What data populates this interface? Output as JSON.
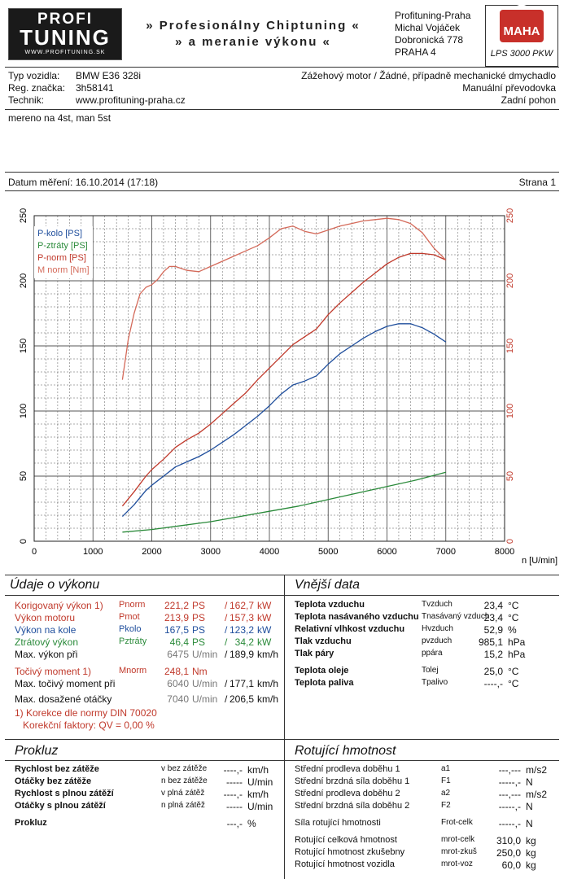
{
  "header": {
    "logo": {
      "line1": "PROFI",
      "line2": "TUNING",
      "line3": "WWW.PROFITUNING.SK"
    },
    "slogan_line1": "» Profesionálny Chiptuning «",
    "slogan_line2": "» a meranie výkonu «",
    "address": [
      "Profituning-Praha",
      "Michal Vojáček",
      "Dobronická 778",
      "PRAHA 4"
    ],
    "maha_logo": "MAHA",
    "maha_model": "LPS 3000 PKW"
  },
  "vehicle": {
    "type_label": "Typ vozidla:",
    "type_value": "BMW E36 328i",
    "reg_label": "Reg. značka:",
    "reg_value": "3h58141",
    "tech_label": "Technik:",
    "tech_value": "www.profituning-praha.cz",
    "right1": "Zážehový motor / Žádné, případně mechanické dmychadlo",
    "right2": "Manuální převodovka",
    "right3": "Zadní pohon"
  },
  "note": "mereno na 4st, man 5st",
  "meas_date": "Datum měření: 16.10.2014 (17:18)",
  "page": "Strana 1",
  "chart_data": {
    "type": "line",
    "xlabel": "n [U/min]",
    "xlim": [
      0,
      8000
    ],
    "ylim": [
      0,
      250
    ],
    "x_ticks": [
      "0",
      "1000",
      "2000",
      "3000",
      "4000",
      "5000",
      "6000",
      "7000",
      "8000"
    ],
    "y_ticks_left": [
      "0",
      "50",
      "100",
      "150",
      "200",
      "250"
    ],
    "y_ticks_right": [
      "0",
      "50",
      "100",
      "150",
      "200",
      "250"
    ],
    "grid": true,
    "legend_position": "top-left",
    "series": [
      {
        "name": "P-kolo [PS]",
        "color": "#1f4e9c",
        "x": [
          1500,
          1700,
          1900,
          2000,
          2200,
          2400,
          2600,
          2800,
          3000,
          3200,
          3400,
          3600,
          3800,
          4000,
          4200,
          4400,
          4600,
          4800,
          5000,
          5200,
          5400,
          5600,
          5800,
          6000,
          6200,
          6400,
          6600,
          6800,
          7000
        ],
        "y": [
          19,
          28,
          39,
          43,
          50,
          57,
          61,
          65,
          70,
          76,
          82,
          89,
          96,
          104,
          113,
          120,
          123,
          127,
          136,
          144,
          150,
          156,
          161,
          165,
          167,
          167,
          164,
          159,
          153
        ]
      },
      {
        "name": "P-ztráty [PS]",
        "color": "#2a8a3a",
        "x": [
          1500,
          2000,
          2500,
          3000,
          3500,
          4000,
          4500,
          5000,
          5500,
          6000,
          6500,
          7000
        ],
        "y": [
          7,
          9,
          12,
          15,
          19,
          23,
          27,
          32,
          37,
          42,
          47,
          53
        ]
      },
      {
        "name": "P-norm [PS]",
        "color": "#c0392b",
        "x": [
          1500,
          1700,
          1900,
          2000,
          2200,
          2400,
          2600,
          2800,
          3000,
          3200,
          3400,
          3600,
          3800,
          4000,
          4200,
          4400,
          4600,
          4800,
          5000,
          5200,
          5400,
          5600,
          5800,
          6000,
          6200,
          6400,
          6600,
          6800,
          7000
        ],
        "y": [
          27,
          38,
          50,
          55,
          63,
          72,
          78,
          83,
          90,
          98,
          106,
          114,
          124,
          133,
          142,
          151,
          157,
          163,
          174,
          183,
          191,
          199,
          206,
          213,
          218,
          221,
          221,
          220,
          216
        ]
      },
      {
        "name": "M norm [Nm]",
        "color": "#d46a5a",
        "x": [
          1500,
          1600,
          1700,
          1800,
          1900,
          2000,
          2100,
          2200,
          2300,
          2400,
          2600,
          2800,
          3000,
          3200,
          3400,
          3600,
          3800,
          4000,
          4200,
          4400,
          4600,
          4800,
          5000,
          5200,
          5400,
          5600,
          5800,
          6000,
          6200,
          6400,
          6600,
          6800,
          7000
        ],
        "y": [
          124,
          155,
          175,
          190,
          195,
          197,
          201,
          207,
          211,
          211,
          208,
          207,
          211,
          215,
          219,
          223,
          227,
          233,
          240,
          242,
          238,
          236,
          239,
          242,
          244,
          246,
          247,
          248,
          247,
          244,
          237,
          225,
          216
        ]
      }
    ]
  },
  "udaje": {
    "title": "Údaje o výkonu",
    "rows": [
      {
        "label": "Korigovaný výkon 1)",
        "sym": "Pnorm",
        "v1": "221,2",
        "u1": "PS",
        "sep": "/",
        "v2": "162,7",
        "u2": "kW"
      },
      {
        "label": "Výkon motoru",
        "sym": "Pmot",
        "v1": "213,9",
        "u1": "PS",
        "sep": "/",
        "v2": "157,3",
        "u2": "kW"
      },
      {
        "label": "Výkon na kole",
        "sym": "Pkolo",
        "v1": "167,5",
        "u1": "PS",
        "sep": "/",
        "v2": "123,2",
        "u2": "kW"
      },
      {
        "label": "Ztrátový výkon",
        "sym": "Pztráty",
        "v1": "46,4",
        "u1": "PS",
        "sep": "/",
        "v2": "34,2",
        "u2": "kW"
      },
      {
        "label": "Max. výkon při",
        "sym": "",
        "v1": "6475",
        "u1": "U/min",
        "sep": "/",
        "v2": "189,9",
        "u2": "km/h"
      },
      {
        "label": "Točivý moment 1)",
        "sym": "Mnorm",
        "v1": "248,1",
        "u1": "Nm",
        "sep": "",
        "v2": "",
        "u2": ""
      },
      {
        "label": "Max. točivý moment při",
        "sym": "",
        "v1": "6040",
        "u1": "U/min",
        "sep": "/",
        "v2": "177,1",
        "u2": "km/h"
      },
      {
        "label": "Max. dosažené otáčky",
        "sym": "",
        "v1": "7040",
        "u1": "U/min",
        "sep": "/",
        "v2": "206,5",
        "u2": "km/h"
      }
    ],
    "note1": "1) Korekce dle normy DIN 70020",
    "note2": "Korekční faktory: QV = 0,00 %"
  },
  "vnejsi": {
    "title": "Vnější data",
    "rows": [
      {
        "label": "Teplota vzduchu",
        "sym": "Tvzduch",
        "val": "23,4",
        "unit": "°C"
      },
      {
        "label": "Teplota nasávaného vzduchu",
        "sym": "Tnasávaný vzduch",
        "val": "23,4",
        "unit": "°C"
      },
      {
        "label": "Relativní vlhkost vzduchu",
        "sym": "Hvzduch",
        "val": "52,9",
        "unit": "%"
      },
      {
        "label": "Tlak vzduchu",
        "sym": "pvzduch",
        "val": "985,1",
        "unit": "hPa"
      },
      {
        "label": "Tlak páry",
        "sym": "ppára",
        "val": "15,2",
        "unit": "hPa"
      },
      {
        "label": "Teplota oleje",
        "sym": "Tolej",
        "val": "25,0",
        "unit": "°C"
      },
      {
        "label": "Teplota paliva",
        "sym": "Tpalivo",
        "val": "----,-",
        "unit": "°C"
      }
    ]
  },
  "prokluz": {
    "title": "Prokluz",
    "rows": [
      {
        "label": "Rychlost bez zátěže",
        "sym": "v bez zátěže",
        "val": "----,-",
        "unit": "km/h"
      },
      {
        "label": "Otáčky bez zátěže",
        "sym": "n bez zátěže",
        "val": "-----",
        "unit": "U/min"
      },
      {
        "label": "Rychlost s plnou zátěží",
        "sym": "v plná zátěž",
        "val": "----,-",
        "unit": "km/h"
      },
      {
        "label": "Otáčky s plnou zátěží",
        "sym": "n plná zátěž",
        "val": "-----",
        "unit": "U/min"
      },
      {
        "label": "Prokluz",
        "sym": "",
        "val": "---,-",
        "unit": "%"
      }
    ]
  },
  "rotujici": {
    "title": "Rotující hmotnost",
    "rows": [
      {
        "label": "Střední prodleva doběhu 1",
        "sym": "a1",
        "val": "---,---",
        "unit": "m/s2"
      },
      {
        "label": "Střední brzdná síla doběhu 1",
        "sym": "F1",
        "val": "-----,-",
        "unit": "N"
      },
      {
        "label": "Střední prodleva doběhu 2",
        "sym": "a2",
        "val": "---,---",
        "unit": "m/s2"
      },
      {
        "label": "Střední brzdná síla doběhu 2",
        "sym": "F2",
        "val": "-----,-",
        "unit": "N"
      },
      {
        "label": "Síla rotující hmotnosti",
        "sym": "Frot-celk",
        "val": "-----,-",
        "unit": "N"
      },
      {
        "label": "Rotující celková hmotnost",
        "sym": "mrot-celk",
        "val": "310,0",
        "unit": "kg"
      },
      {
        "label": "Rotující hmotnost zkušebny",
        "sym": "mrot-zkuš",
        "val": "250,0",
        "unit": "kg"
      },
      {
        "label": "Rotující hmotnost vozidla",
        "sym": "mrot-voz",
        "val": "60,0",
        "unit": "kg"
      }
    ]
  }
}
